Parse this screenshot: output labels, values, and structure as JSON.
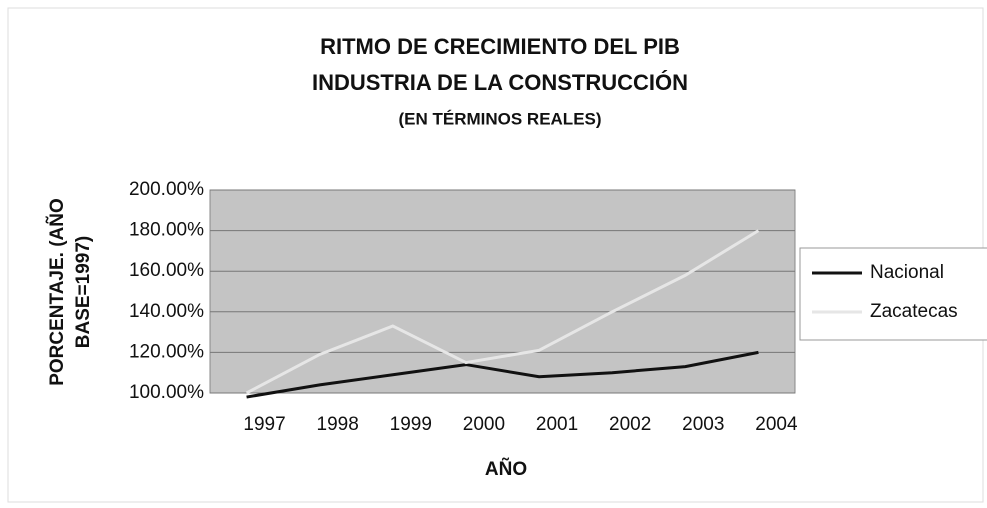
{
  "chart_data": {
    "type": "line",
    "title": [
      "RITMO DE CRECIMIENTO DEL PIB",
      "INDUSTRIA DE LA CONSTRUCCIÓN"
    ],
    "subtitle": "(EN TÉRMINOS REALES)",
    "x_label": "AÑO",
    "y_label": [
      "PORCENTAJE. (AÑO",
      "BASE=1997)"
    ],
    "categories": [
      "1997",
      "1998",
      "1999",
      "2000",
      "2001",
      "2002",
      "2003",
      "2004"
    ],
    "series": [
      {
        "name": "Nacional",
        "color": "#111111",
        "values": [
          98,
          104,
          109,
          114,
          108,
          110,
          113,
          120
        ]
      },
      {
        "name": "Zacatecas",
        "color": "#e6e6e6",
        "values": [
          100,
          119,
          133,
          115,
          121,
          140,
          158,
          180
        ]
      }
    ],
    "ylim": [
      100,
      200
    ],
    "yticks": [
      {
        "value": 100,
        "label": "100.00%"
      },
      {
        "value": 120,
        "label": "120.00%"
      },
      {
        "value": 140,
        "label": "140.00%"
      },
      {
        "value": 160,
        "label": "160.00%"
      },
      {
        "value": 180,
        "label": "180.00%"
      },
      {
        "value": 200,
        "label": "200.00%"
      }
    ],
    "grid": true,
    "legend": "right"
  }
}
